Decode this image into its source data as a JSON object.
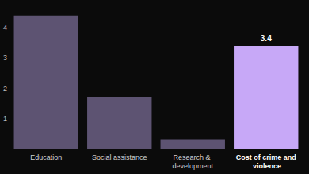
{
  "chart_data": {
    "type": "bar",
    "categories": [
      "Education",
      "Social assistance",
      "Research & development",
      "Cost of crime and violence"
    ],
    "values": [
      4.4,
      1.7,
      0.3,
      3.4
    ],
    "colors": [
      "#5d5372",
      "#5d5372",
      "#5d5372",
      "#c7a8f7"
    ],
    "data_labels": true,
    "value_labels": [
      null,
      null,
      null,
      "3.4"
    ],
    "ylim": [
      0,
      4.5
    ],
    "yticks": [
      1,
      2,
      3,
      4
    ],
    "grid": false
  }
}
